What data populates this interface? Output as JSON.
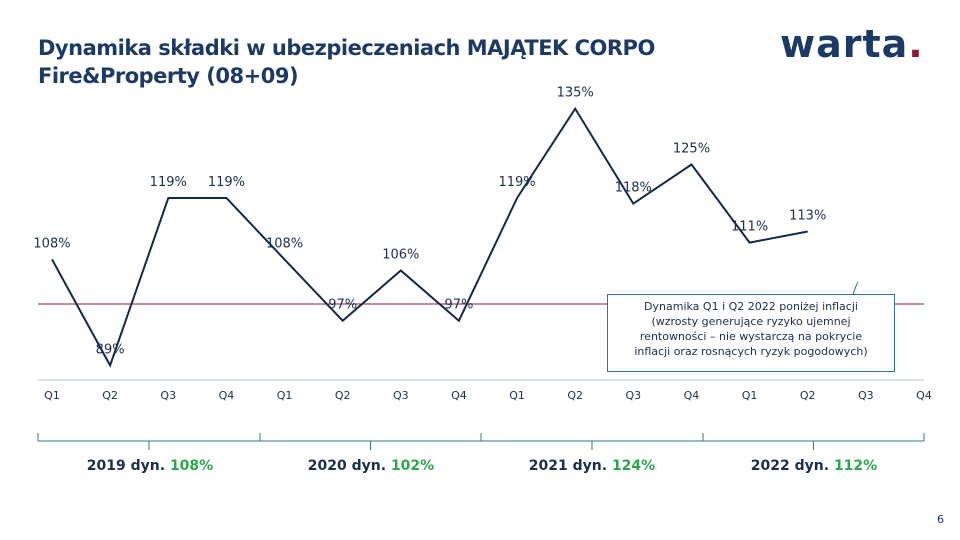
{
  "header": {
    "title_line1": "Dynamika składki w ubezpieczeniach MAJĄTEK CORPO",
    "title_line2": "Fire&Property (08+09)",
    "logo_text": "warta",
    "logo_dot": "."
  },
  "page_number": "6",
  "callout": {
    "line1": "Dynamika Q1 i Q2 2022 poniżej inflacji",
    "line2": "(wzrosty generujące ryzyko ujemnej",
    "line3": "rentowności – nie wystarczą na pokrycie",
    "line4": "inflacji oraz rosnących ryzyk pogodowych)"
  },
  "chart_data": {
    "type": "line",
    "categories": [
      "Q1",
      "Q2",
      "Q3",
      "Q4",
      "Q1",
      "Q2",
      "Q3",
      "Q4",
      "Q1",
      "Q2",
      "Q3",
      "Q4",
      "Q1",
      "Q2",
      "Q3",
      "Q4"
    ],
    "values": [
      108,
      89,
      119,
      119,
      108,
      97,
      106,
      97,
      119,
      135,
      118,
      125,
      111,
      113,
      null,
      null
    ],
    "data_labels": [
      "108%",
      "89%",
      "119%",
      "119%",
      "108%",
      "97%",
      "106%",
      "97%",
      "119%",
      "135%",
      "118%",
      "125%",
      "111%",
      "113%",
      "",
      ""
    ],
    "reference_line": 100,
    "groups": [
      {
        "year": "2019 dyn.",
        "pct": "108%"
      },
      {
        "year": "2020 dyn.",
        "pct": "102%"
      },
      {
        "year": "2021 dyn.",
        "pct": "124%"
      },
      {
        "year": "2022 dyn.",
        "pct": "112%"
      }
    ],
    "colors": {
      "line": "#13294b",
      "reference": "#8b1b3a",
      "axis": "#2e7d7a",
      "accent": "#2aa84a"
    }
  }
}
